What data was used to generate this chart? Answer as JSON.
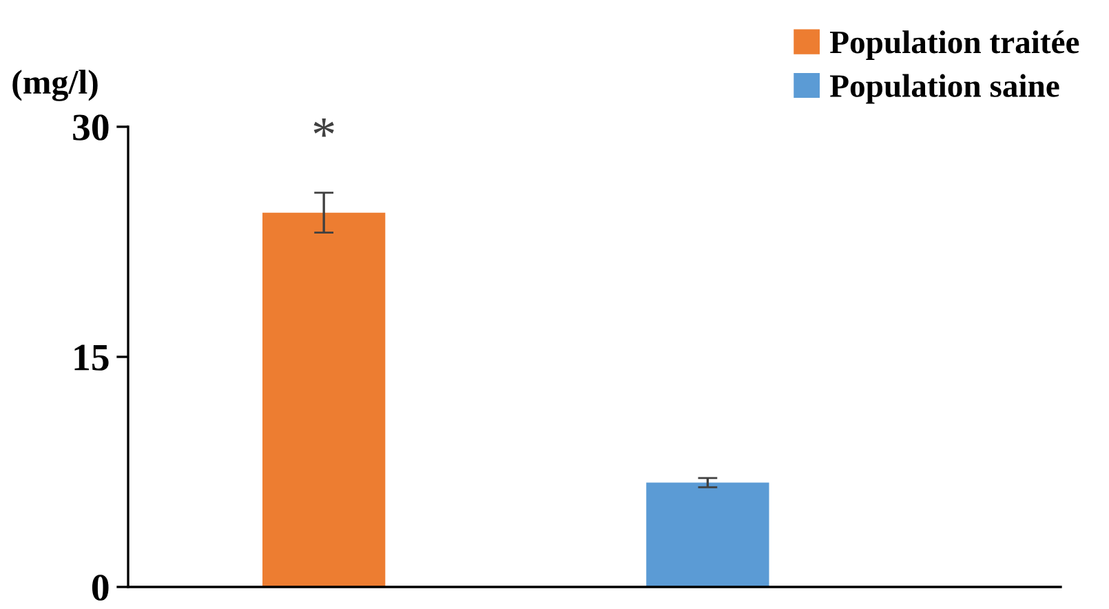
{
  "chart_data": {
    "type": "bar",
    "ylabel": "(mg/l)",
    "categories": [
      null,
      null
    ],
    "series": [
      {
        "name": "Population traitée",
        "color": "#ed7d31",
        "values": [
          24.4,
          null
        ],
        "errors": [
          1.3,
          null
        ]
      },
      {
        "name": "Population saine",
        "color": "#5b9bd5",
        "values": [
          null,
          6.8
        ],
        "errors": [
          null,
          0.3
        ]
      }
    ],
    "ylim": [
      0,
      30
    ],
    "yticks": [
      0,
      15,
      30
    ],
    "grid": false,
    "legend": "top right",
    "tick_labels": "y",
    "annotations": [
      "*"
    ]
  }
}
